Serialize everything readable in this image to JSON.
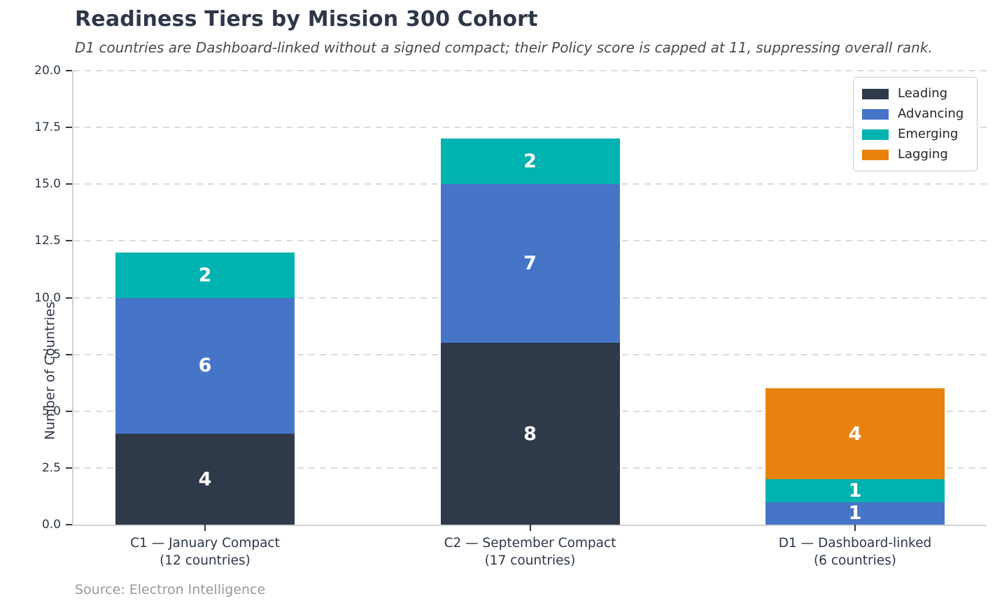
{
  "title": "Readiness Tiers by Mission 300 Cohort",
  "subtitle": "D1 countries are Dashboard-linked without a signed compact; their Policy score is capped at 11, suppressing overall rank.",
  "source": "Source: Electron Intelligence",
  "chart_data": {
    "type": "bar",
    "stacked": true,
    "title": "Readiness Tiers by Mission 300 Cohort",
    "subtitle": "D1 countries are Dashboard-linked without a signed compact; their Policy score is capped at 11, suppressing overall rank.",
    "xlabel": "",
    "ylabel": "Number of Countries",
    "ylim": [
      0,
      20
    ],
    "yticks": [
      0,
      2.5,
      5,
      7.5,
      10,
      12.5,
      15,
      17.5,
      20
    ],
    "ytick_labels": [
      "0.0",
      "2.5",
      "5.0",
      "7.5",
      "10.0",
      "12.5",
      "15.0",
      "17.5",
      "20.0"
    ],
    "grid": "horizontal dashed",
    "legend_position": "upper right",
    "categories": [
      {
        "line1": "C1 — January Compact",
        "line2": "(12 countries)"
      },
      {
        "line1": "C2 — September Compact",
        "line2": "(17 countries)"
      },
      {
        "line1": "D1 — Dashboard-linked",
        "line2": "(6 countries)"
      }
    ],
    "totals": [
      12,
      17,
      6
    ],
    "series": [
      {
        "name": "Leading",
        "color": "#2e3a4a",
        "values": [
          4,
          8,
          0
        ]
      },
      {
        "name": "Advancing",
        "color": "#4675c8",
        "values": [
          6,
          7,
          1
        ]
      },
      {
        "name": "Emerging",
        "color": "#00b2b0",
        "values": [
          2,
          2,
          1
        ]
      },
      {
        "name": "Lagging",
        "color": "#e8820e",
        "values": [
          0,
          0,
          4
        ]
      }
    ],
    "bar_value_label_color": "#ffffff",
    "colors": {
      "title_text": "#2d3748",
      "subtitle_text": "#4a4a4a",
      "tick_text": "#2d3748",
      "grid": "#dcdcdc",
      "spine": "#d2d2d2",
      "source_text": "#989898",
      "background": "#ffffff"
    }
  }
}
